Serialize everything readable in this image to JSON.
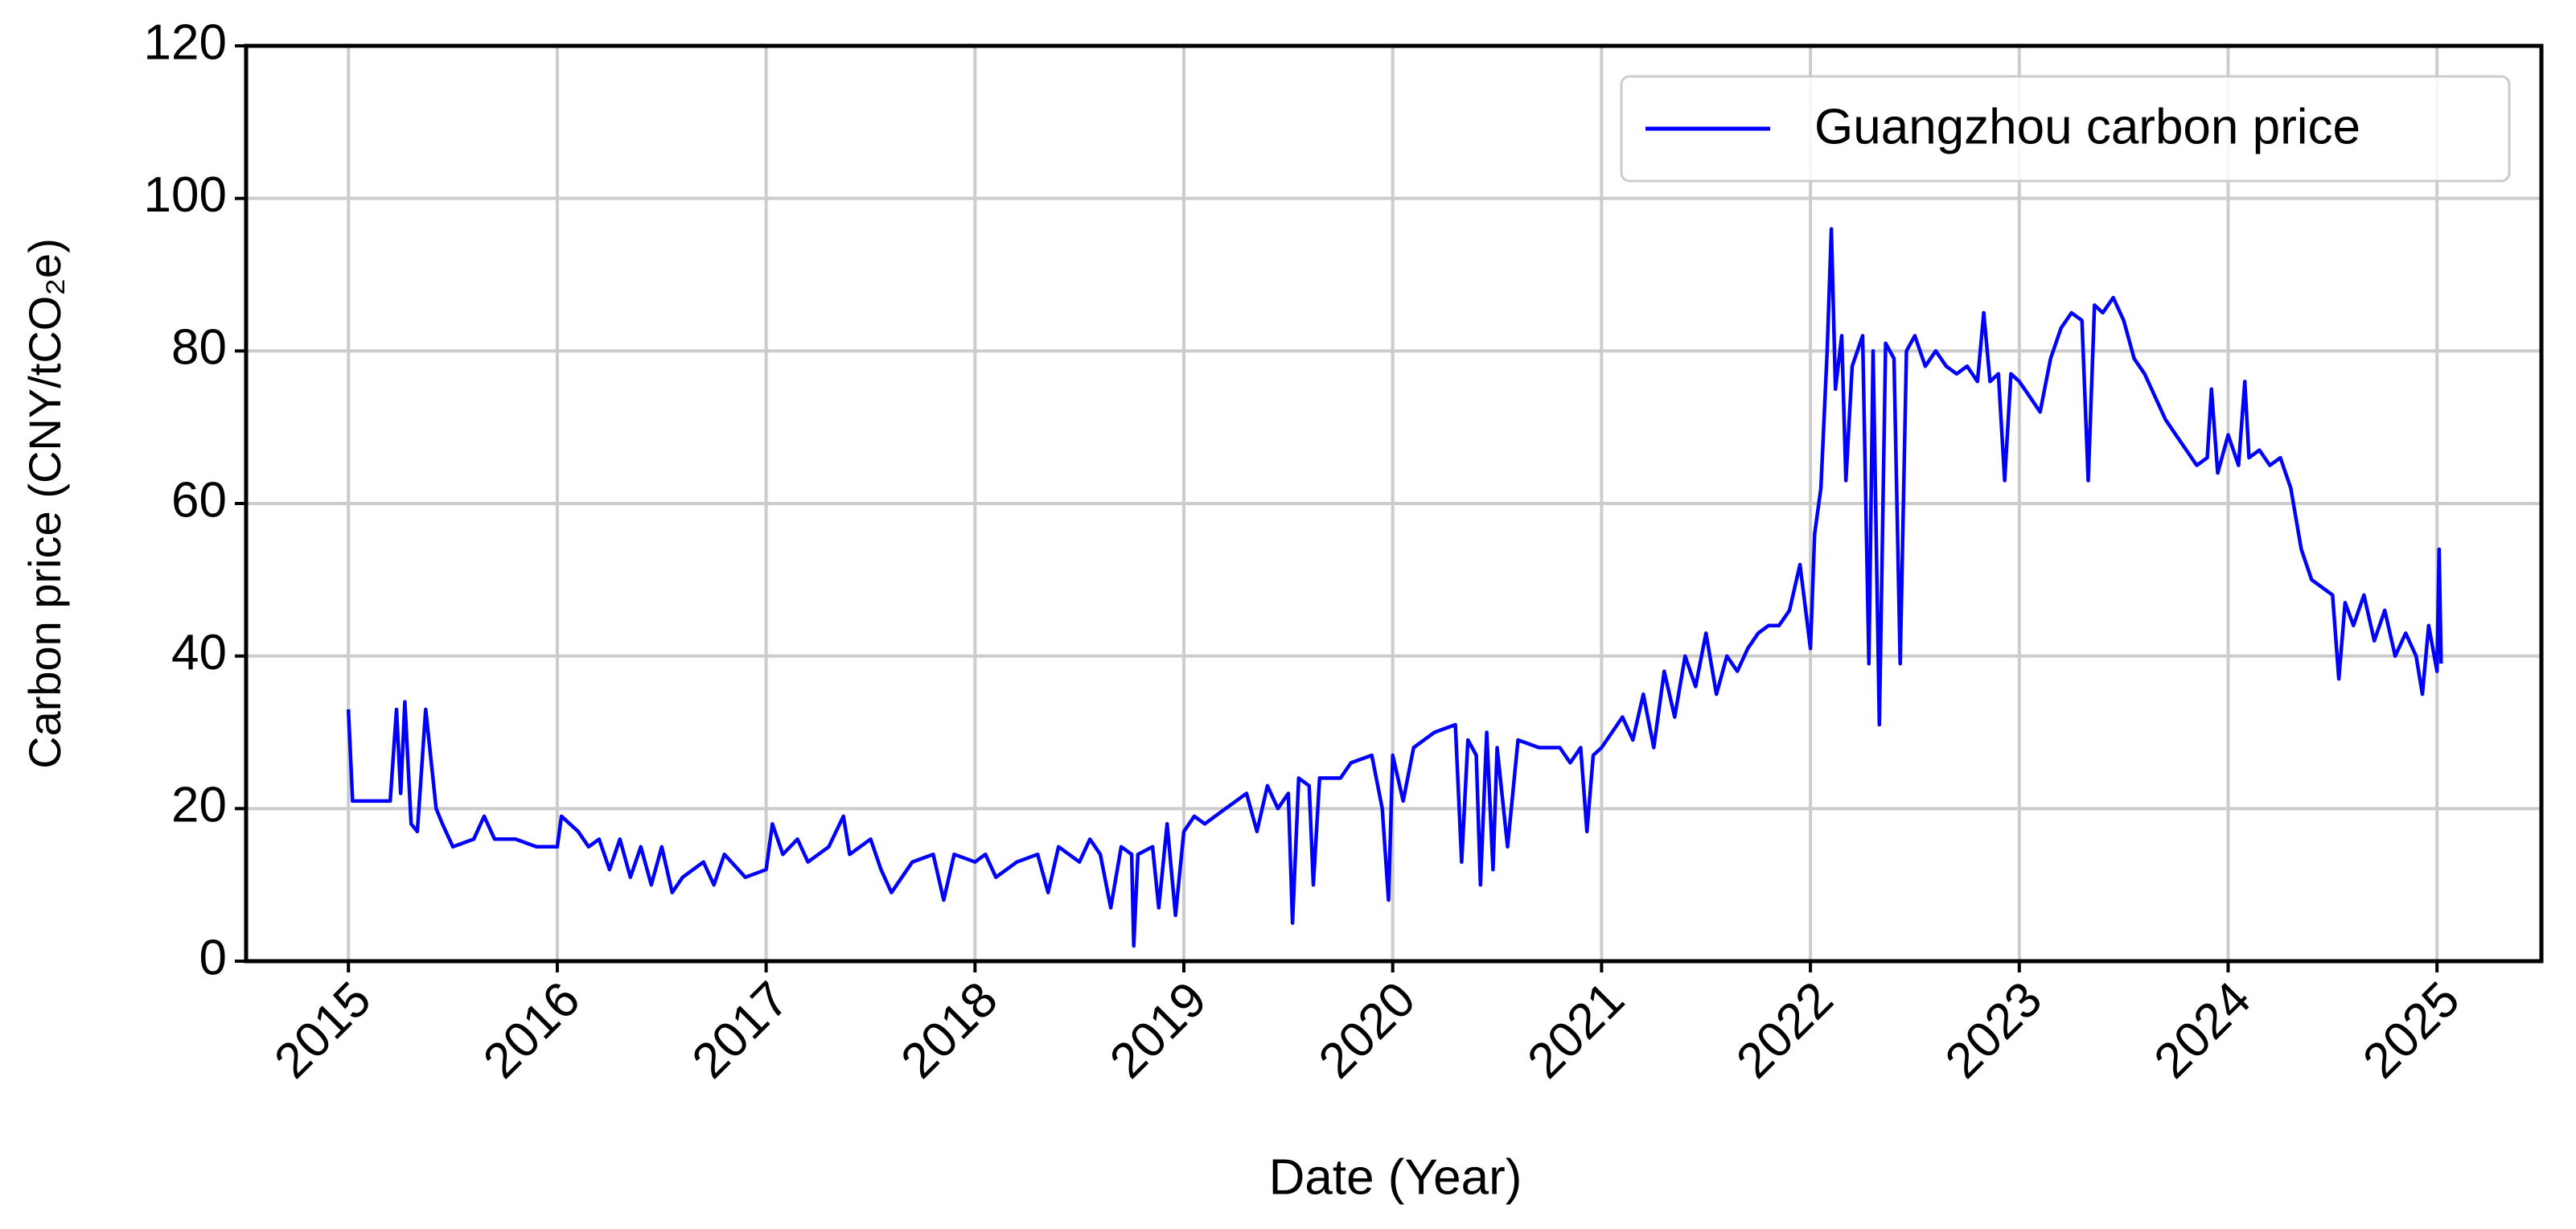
{
  "chart_data": {
    "type": "line",
    "x_label": "Date (Year)",
    "y_label": "Carbon price (CNY/tCO₂e)",
    "xlim": [
      2014.51,
      2025.5
    ],
    "xticks": [
      2015,
      2016,
      2017,
      2018,
      2019,
      2020,
      2021,
      2022,
      2023,
      2024,
      2025
    ],
    "ylim": [
      0,
      120
    ],
    "yticks": [
      0,
      20,
      40,
      60,
      80,
      100,
      120
    ],
    "grid": true,
    "legend": "upper right",
    "x": [
      2015.0,
      2015.02,
      2015.2,
      2015.23,
      2015.25,
      2015.27,
      2015.3,
      2015.33,
      2015.37,
      2015.42,
      2015.45,
      2015.5,
      2015.6,
      2015.65,
      2015.7,
      2015.8,
      2015.9,
      2016.0,
      2016.02,
      2016.1,
      2016.15,
      2016.2,
      2016.25,
      2016.3,
      2016.35,
      2016.4,
      2016.45,
      2016.5,
      2016.55,
      2016.6,
      2016.7,
      2016.75,
      2016.8,
      2016.9,
      2017.0,
      2017.03,
      2017.08,
      2017.15,
      2017.2,
      2017.3,
      2017.37,
      2017.4,
      2017.5,
      2017.55,
      2017.6,
      2017.7,
      2017.8,
      2017.85,
      2017.9,
      2018.0,
      2018.05,
      2018.1,
      2018.2,
      2018.3,
      2018.35,
      2018.4,
      2018.5,
      2018.55,
      2018.6,
      2018.65,
      2018.7,
      2018.75,
      2018.76,
      2018.78,
      2018.85,
      2018.88,
      2018.92,
      2018.96,
      2019.0,
      2019.05,
      2019.1,
      2019.2,
      2019.3,
      2019.35,
      2019.4,
      2019.45,
      2019.5,
      2019.52,
      2019.55,
      2019.6,
      2019.62,
      2019.65,
      2019.75,
      2019.8,
      2019.9,
      2019.95,
      2019.98,
      2020.0,
      2020.05,
      2020.1,
      2020.2,
      2020.3,
      2020.33,
      2020.36,
      2020.4,
      2020.42,
      2020.45,
      2020.48,
      2020.5,
      2020.55,
      2020.6,
      2020.7,
      2020.8,
      2020.85,
      2020.9,
      2020.93,
      2020.96,
      2021.0,
      2021.05,
      2021.1,
      2021.15,
      2021.2,
      2021.25,
      2021.3,
      2021.35,
      2021.4,
      2021.45,
      2021.5,
      2021.55,
      2021.6,
      2021.65,
      2021.7,
      2021.75,
      2021.8,
      2021.85,
      2021.9,
      2021.95,
      2022.0,
      2022.02,
      2022.05,
      2022.08,
      2022.1,
      2022.12,
      2022.15,
      2022.17,
      2022.2,
      2022.25,
      2022.28,
      2022.3,
      2022.33,
      2022.36,
      2022.4,
      2022.43,
      2022.46,
      2022.5,
      2022.55,
      2022.6,
      2022.65,
      2022.7,
      2022.75,
      2022.8,
      2022.83,
      2022.86,
      2022.9,
      2022.93,
      2022.96,
      2023.0,
      2023.05,
      2023.1,
      2023.15,
      2023.2,
      2023.25,
      2023.3,
      2023.33,
      2023.36,
      2023.4,
      2023.45,
      2023.5,
      2023.55,
      2023.6,
      2023.65,
      2023.7,
      2023.75,
      2023.8,
      2023.85,
      2023.9,
      2023.92,
      2023.95,
      2024.0,
      2024.05,
      2024.08,
      2024.1,
      2024.15,
      2024.2,
      2024.25,
      2024.3,
      2024.35,
      2024.4,
      2024.45,
      2024.5,
      2024.53,
      2024.56,
      2024.6,
      2024.65,
      2024.7,
      2024.75,
      2024.8,
      2024.85,
      2024.9,
      2024.93,
      2024.96,
      2025.0,
      2025.01,
      2025.02
    ],
    "series": [
      {
        "name": "Guangzhou carbon price",
        "color": "#0000ff",
        "values": [
          33,
          21,
          21,
          33,
          22,
          34,
          18,
          17,
          33,
          20,
          18,
          15,
          16,
          19,
          16,
          16,
          15,
          15,
          19,
          17,
          15,
          16,
          12,
          16,
          11,
          15,
          10,
          15,
          9,
          11,
          13,
          10,
          14,
          11,
          12,
          18,
          14,
          16,
          13,
          15,
          19,
          14,
          16,
          12,
          9,
          13,
          14,
          8,
          14,
          13,
          14,
          11,
          13,
          14,
          9,
          15,
          13,
          16,
          14,
          7,
          15,
          14,
          2,
          14,
          15,
          7,
          18,
          6,
          17,
          19,
          18,
          20,
          22,
          17,
          23,
          20,
          22,
          5,
          24,
          23,
          10,
          24,
          24,
          26,
          27,
          20,
          8,
          27,
          21,
          28,
          30,
          31,
          13,
          29,
          27,
          10,
          30,
          12,
          28,
          15,
          29,
          28,
          28,
          26,
          28,
          17,
          27,
          28,
          30,
          32,
          29,
          35,
          28,
          38,
          32,
          40,
          36,
          43,
          35,
          40,
          38,
          41,
          43,
          44,
          44,
          46,
          52,
          41,
          56,
          62,
          80,
          96,
          75,
          82,
          63,
          78,
          82,
          39,
          80,
          31,
          81,
          79,
          39,
          80,
          82,
          78,
          80,
          78,
          77,
          78,
          76,
          85,
          76,
          77,
          63,
          77,
          76,
          74,
          72,
          79,
          83,
          85,
          84,
          63,
          86,
          85,
          87,
          84,
          79,
          77,
          74,
          71,
          69,
          67,
          65,
          66,
          75,
          64,
          69,
          65,
          76,
          66,
          67,
          65,
          66,
          62,
          54,
          50,
          49,
          48,
          37,
          47,
          44,
          48,
          42,
          46,
          40,
          43,
          40,
          35,
          44,
          38,
          54,
          39
        ]
      }
    ]
  }
}
